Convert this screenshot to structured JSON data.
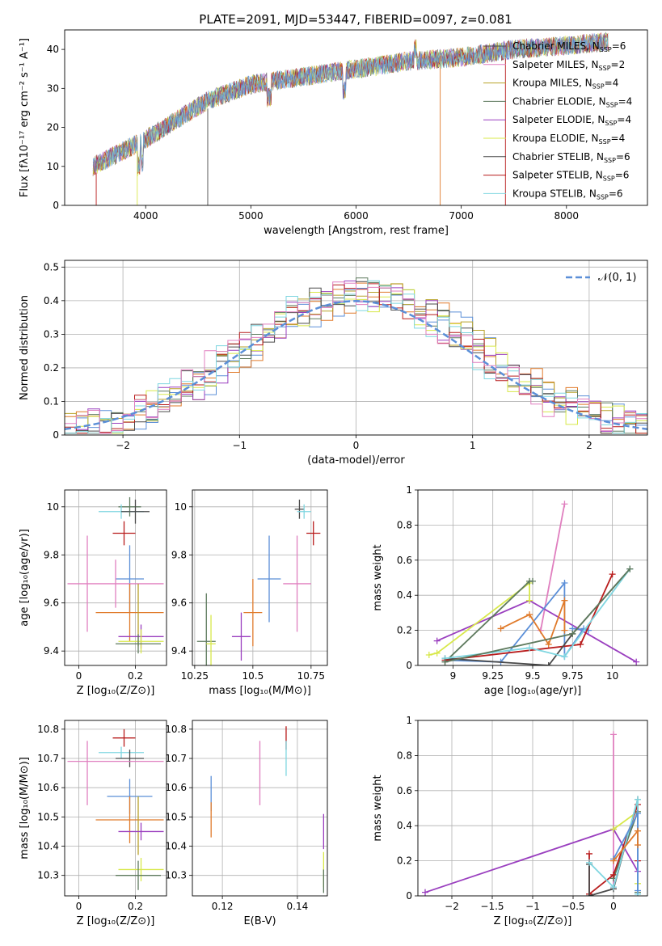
{
  "figure": {
    "title": "PLATE=2091, MJD=53447, FIBERID=0097, z=0.081"
  },
  "colors": {
    "chabrier_miles": "#5b8fd8",
    "salpeter_miles": "#e07a2a",
    "kroupa_miles": "#b8a22a",
    "chabrier_elodie": "#5e7a5e",
    "salpeter_elodie": "#9a3fbf",
    "kroupa_elodie": "#d8e84a",
    "chabrier_stelib": "#4a4a4a",
    "salpeter_stelib": "#b81c1c",
    "kroupa_stelib": "#7fd6e0",
    "pink": "#e07fbf",
    "ncurve": "#5b8fd8"
  },
  "chart_data": [
    {
      "id": "spectrum",
      "type": "line",
      "xlabel": "wavelength [Angstrom, rest frame]",
      "ylabel": "Flux [fλ10⁻¹⁷ erg cm⁻² s⁻¹ A⁻¹]",
      "xlim": [
        3230,
        8770
      ],
      "ylim": [
        0,
        45
      ],
      "xticks": [
        4000,
        5000,
        6000,
        7000,
        8000
      ],
      "yticks": [
        0,
        10,
        20,
        30,
        40
      ],
      "legend_position": "top-right",
      "legend": [
        {
          "label": "Chabrier MILES, N",
          "sub": "SSP",
          "tail": "=6",
          "color_key": "chabrier_stelib"
        },
        {
          "label": "Salpeter MILES, N",
          "sub": "SSP",
          "tail": "=2",
          "color_key": "pink"
        },
        {
          "label": "Kroupa MILES, N",
          "sub": "SSP",
          "tail": "=4",
          "color_key": "kroupa_miles"
        },
        {
          "label": "Chabrier ELODIE, N",
          "sub": "SSP",
          "tail": "=4",
          "color_key": "chabrier_elodie"
        },
        {
          "label": "Salpeter ELODIE, N",
          "sub": "SSP",
          "tail": "=4",
          "color_key": "salpeter_elodie"
        },
        {
          "label": "Kroupa ELODIE, N",
          "sub": "SSP",
          "tail": "=4",
          "color_key": "kroupa_elodie"
        },
        {
          "label": "Chabrier STELIB, N",
          "sub": "SSP",
          "tail": "=6",
          "color_key": "chabrier_stelib"
        },
        {
          "label": "Salpeter STELIB, N",
          "sub": "SSP",
          "tail": "=6",
          "color_key": "salpeter_stelib"
        },
        {
          "label": "Kroupa STELIB, N",
          "sub": "SSP",
          "tail": "=6",
          "color_key": "kroupa_stelib"
        }
      ],
      "x_range": [
        3500,
        8400
      ],
      "y_approx": [
        [
          3500,
          10
        ],
        [
          4000,
          17
        ],
        [
          4300,
          22
        ],
        [
          4600,
          27
        ],
        [
          5000,
          31
        ],
        [
          5500,
          33
        ],
        [
          6000,
          35
        ],
        [
          6500,
          37
        ],
        [
          7000,
          38
        ],
        [
          7500,
          40
        ],
        [
          8000,
          41
        ],
        [
          8400,
          42
        ]
      ]
    },
    {
      "id": "residuals",
      "type": "line",
      "xlabel": "(data-model)/error",
      "ylabel": "Normed distribution",
      "xlim": [
        -2.5,
        2.5
      ],
      "ylim": [
        0,
        0.52
      ],
      "xticks": [
        -2,
        -1,
        0,
        1,
        2
      ],
      "yticks": [
        0.0,
        0.1,
        0.2,
        0.3,
        0.4,
        0.5
      ],
      "grid": true,
      "legend_position": "top-right",
      "legend_label": "𝒩(0, 1)",
      "series": [
        {
          "name": "𝒩(0, 1)",
          "style": "dashed",
          "gaussian": {
            "mu": 0,
            "sigma": 1
          }
        }
      ],
      "bin_width": 0.1,
      "histogram_envelope_range": [
        -2.5,
        2.5
      ]
    },
    {
      "id": "age_vs_Z",
      "type": "scatter",
      "xlabel": "Z [log₁₀(Z/Z⊙)]",
      "ylabel": "age  [log₁₀(age/yr)]",
      "xlim": [
        -0.05,
        0.31
      ],
      "ylim": [
        9.34,
        10.07
      ],
      "xticks": [
        0.0,
        0.2
      ],
      "yticks": [
        9.4,
        9.6,
        9.8,
        10.0
      ],
      "grid": true,
      "points": [
        {
          "x": 0.18,
          "y": 10.0,
          "xerr": 0.04,
          "yerr": 0.04,
          "color_key": "chabrier_elodie"
        },
        {
          "x": 0.15,
          "y": 9.98,
          "xerr": 0.08,
          "yerr": 0.03,
          "color_key": "kroupa_stelib"
        },
        {
          "x": 0.2,
          "y": 9.98,
          "xerr": 0.05,
          "yerr": 0.05,
          "color_key": "chabrier_stelib"
        },
        {
          "x": 0.16,
          "y": 9.89,
          "xerr": 0.04,
          "yerr": 0.05,
          "color_key": "salpeter_stelib"
        },
        {
          "x": 0.18,
          "y": 9.7,
          "xerr": 0.05,
          "yerr": 0.14,
          "color_key": "chabrier_miles"
        },
        {
          "x": 0.13,
          "y": 9.68,
          "xerr": 0.17,
          "yerr": 0.1,
          "color_key": "pink"
        },
        {
          "x": 0.03,
          "y": 9.68,
          "xerr": 0.0,
          "yerr": 0.2,
          "color_key": "pink"
        },
        {
          "x": 0.18,
          "y": 9.56,
          "xerr": 0.12,
          "yerr": 0.12,
          "color_key": "salpeter_miles"
        },
        {
          "x": 0.21,
          "y": 9.55,
          "xerr": 0.0,
          "yerr": 0.13,
          "color_key": "kroupa_miles"
        },
        {
          "x": 0.22,
          "y": 9.46,
          "xerr": 0.08,
          "yerr": 0.05,
          "color_key": "salpeter_elodie"
        },
        {
          "x": 0.22,
          "y": 9.44,
          "xerr": 0.08,
          "yerr": 0.05,
          "color_key": "kroupa_elodie"
        },
        {
          "x": 0.21,
          "y": 9.43,
          "xerr": 0.08,
          "yerr": 0.04,
          "color_key": "chabrier_elodie"
        }
      ]
    },
    {
      "id": "age_vs_mass",
      "type": "scatter",
      "xlabel": "mass [log₁₀(M/M⊙)]",
      "xlim": [
        10.24,
        10.82
      ],
      "ylim": [
        9.34,
        10.07
      ],
      "xticks": [
        10.25,
        10.5,
        10.75
      ],
      "yticks": [
        9.4,
        9.6,
        9.8,
        10.0
      ],
      "grid": true,
      "points": [
        {
          "x": 10.7,
          "y": 9.99,
          "xerr": 0.02,
          "yerr": 0.04,
          "color_key": "chabrier_stelib"
        },
        {
          "x": 10.72,
          "y": 9.98,
          "xerr": 0.03,
          "yerr": 0.03,
          "color_key": "kroupa_stelib"
        },
        {
          "x": 10.76,
          "y": 9.89,
          "xerr": 0.03,
          "yerr": 0.05,
          "color_key": "salpeter_stelib"
        },
        {
          "x": 10.57,
          "y": 9.7,
          "xerr": 0.05,
          "yerr": 0.18,
          "color_key": "chabrier_miles"
        },
        {
          "x": 10.69,
          "y": 9.68,
          "xerr": 0.06,
          "yerr": 0.2,
          "color_key": "pink"
        },
        {
          "x": 10.5,
          "y": 9.56,
          "xerr": 0.04,
          "yerr": 0.14,
          "color_key": "salpeter_miles"
        },
        {
          "x": 10.45,
          "y": 9.46,
          "xerr": 0.04,
          "yerr": 0.1,
          "color_key": "salpeter_elodie"
        },
        {
          "x": 10.3,
          "y": 9.44,
          "xerr": 0.04,
          "yerr": 0.2,
          "color_key": "chabrier_elodie"
        },
        {
          "x": 10.32,
          "y": 9.43,
          "xerr": 0.02,
          "yerr": 0.12,
          "color_key": "kroupa_elodie"
        }
      ]
    },
    {
      "id": "mass_weight_vs_age",
      "type": "line",
      "xlabel": "age  [log₁₀(age/yr)]",
      "ylabel": "mass weight",
      "xlim": [
        8.78,
        10.22
      ],
      "ylim": [
        0.0,
        1.0
      ],
      "xticks": [
        9.0,
        9.25,
        9.5,
        9.75,
        10.0
      ],
      "yticks": [
        0.0,
        0.2,
        0.4,
        0.6,
        0.8,
        1.0
      ],
      "grid": true,
      "series": [
        {
          "color_key": "pink",
          "x": [
            9.55,
            9.7
          ],
          "y": [
            0.2,
            0.92
          ]
        },
        {
          "color_key": "salpeter_elodie",
          "x": [
            8.9,
            9.48,
            10.15
          ],
          "y": [
            0.14,
            0.37,
            0.02
          ]
        },
        {
          "color_key": "kroupa_elodie",
          "x": [
            8.85,
            8.9,
            9.48,
            9.48
          ],
          "y": [
            0.06,
            0.07,
            0.47,
            0.37
          ]
        },
        {
          "color_key": "chabrier_elodie",
          "x": [
            8.95,
            9.48,
            9.5
          ],
          "y": [
            0.02,
            0.48,
            0.48
          ]
        },
        {
          "color_key": "chabrier_miles",
          "x": [
            8.95,
            9.3,
            9.7,
            9.7,
            9.82,
            9.85,
            9.75
          ],
          "y": [
            0.03,
            0.02,
            0.47,
            0.05,
            0.21,
            0.2,
            0.21
          ]
        },
        {
          "color_key": "salpeter_miles",
          "x": [
            9.3,
            9.48,
            9.6,
            9.7,
            9.7
          ],
          "y": [
            0.21,
            0.29,
            0.12,
            0.37,
            0.2
          ]
        },
        {
          "color_key": "salpeter_stelib",
          "x": [
            8.95,
            9.8,
            10.0
          ],
          "y": [
            0.03,
            0.12,
            0.52
          ]
        },
        {
          "color_key": "chabrier_stelib",
          "x": [
            8.95,
            9.6,
            9.75,
            10.11
          ],
          "y": [
            0.04,
            0.0,
            0.18,
            0.55
          ]
        },
        {
          "color_key": "kroupa_stelib",
          "x": [
            8.95,
            9.48,
            9.7,
            10.11
          ],
          "y": [
            0.04,
            0.1,
            0.05,
            0.55
          ]
        },
        {
          "color_key": "chabrier_elodie",
          "x": [
            8.95,
            9.75,
            10.11
          ],
          "y": [
            0.02,
            0.18,
            0.55
          ]
        }
      ]
    },
    {
      "id": "mass_vs_Z",
      "type": "scatter",
      "xlabel": "Z [log₁₀(Z/Z⊙)]",
      "ylabel": "mass [log₁₀(M/M⊙)]",
      "xlim": [
        -0.05,
        0.31
      ],
      "ylim": [
        10.23,
        10.83
      ],
      "xticks": [
        0.0,
        0.2
      ],
      "yticks": [
        10.3,
        10.4,
        10.5,
        10.6,
        10.7,
        10.8
      ],
      "grid": true,
      "points": [
        {
          "x": 0.16,
          "y": 10.77,
          "xerr": 0.04,
          "yerr": 0.03,
          "color_key": "salpeter_stelib"
        },
        {
          "x": 0.15,
          "y": 10.72,
          "xerr": 0.08,
          "yerr": 0.02,
          "color_key": "kroupa_stelib"
        },
        {
          "x": 0.18,
          "y": 10.7,
          "xerr": 0.05,
          "yerr": 0.03,
          "color_key": "chabrier_stelib"
        },
        {
          "x": 0.13,
          "y": 10.69,
          "xerr": 0.17,
          "yerr": 0.0,
          "color_key": "pink"
        },
        {
          "x": 0.03,
          "y": 10.65,
          "xerr": 0.0,
          "yerr": 0.11,
          "color_key": "pink"
        },
        {
          "x": 0.18,
          "y": 10.57,
          "xerr": 0.08,
          "yerr": 0.06,
          "color_key": "chabrier_miles"
        },
        {
          "x": 0.18,
          "y": 10.49,
          "xerr": 0.12,
          "yerr": 0.08,
          "color_key": "salpeter_miles"
        },
        {
          "x": 0.21,
          "y": 10.47,
          "xerr": 0.0,
          "yerr": 0.1,
          "color_key": "kroupa_miles"
        },
        {
          "x": 0.22,
          "y": 10.45,
          "xerr": 0.08,
          "yerr": 0.03,
          "color_key": "salpeter_elodie"
        },
        {
          "x": 0.22,
          "y": 10.32,
          "xerr": 0.08,
          "yerr": 0.04,
          "color_key": "kroupa_elodie"
        },
        {
          "x": 0.21,
          "y": 10.3,
          "xerr": 0.08,
          "yerr": 0.05,
          "color_key": "chabrier_elodie"
        }
      ]
    },
    {
      "id": "mass_vs_ebv",
      "type": "scatter",
      "xlabel": "E(B-V)",
      "xlim": [
        0.112,
        0.148
      ],
      "ylim": [
        10.23,
        10.83
      ],
      "xticks": [
        0.12,
        0.14
      ],
      "yticks": [
        10.3,
        10.4,
        10.5,
        10.6,
        10.7,
        10.8
      ],
      "grid": true,
      "points": [
        {
          "x": 0.137,
          "y": 10.77,
          "xerr": 0.0,
          "yerr": 0.04,
          "color_key": "salpeter_stelib"
        },
        {
          "x": 0.137,
          "y": 10.7,
          "xerr": 0.0,
          "yerr": 0.06,
          "color_key": "kroupa_stelib"
        },
        {
          "x": 0.13,
          "y": 10.65,
          "xerr": 0.0,
          "yerr": 0.11,
          "color_key": "pink"
        },
        {
          "x": 0.117,
          "y": 10.58,
          "xerr": 0.0,
          "yerr": 0.06,
          "color_key": "chabrier_miles"
        },
        {
          "x": 0.117,
          "y": 10.49,
          "xerr": 0.0,
          "yerr": 0.06,
          "color_key": "salpeter_miles"
        },
        {
          "x": 0.147,
          "y": 10.45,
          "xerr": 0.0,
          "yerr": 0.06,
          "color_key": "salpeter_elodie"
        },
        {
          "x": 0.147,
          "y": 10.32,
          "xerr": 0.0,
          "yerr": 0.06,
          "color_key": "kroupa_elodie"
        },
        {
          "x": 0.147,
          "y": 10.28,
          "xerr": 0.0,
          "yerr": 0.04,
          "color_key": "chabrier_elodie"
        }
      ]
    },
    {
      "id": "mass_weight_vs_Z",
      "type": "line",
      "xlabel": "Z [log₁₀(Z/Z⊙)]",
      "ylabel": "mass weight",
      "xlim": [
        -2.42,
        0.42
      ],
      "ylim": [
        0.0,
        1.0
      ],
      "xticks": [
        -2.0,
        -1.5,
        -1.0,
        -0.5,
        0.0
      ],
      "yticks": [
        0.0,
        0.2,
        0.4,
        0.6,
        0.8,
        1.0
      ],
      "grid": true,
      "series": [
        {
          "color_key": "pink",
          "x": [
            0.0,
            0.0
          ],
          "y": [
            0.92,
            0.05
          ]
        },
        {
          "color_key": "salpeter_elodie",
          "x": [
            -2.33,
            0.0,
            0.3
          ],
          "y": [
            0.02,
            0.38,
            0.14
          ]
        },
        {
          "color_key": "kroupa_elodie",
          "x": [
            0.0,
            0.3,
            0.3
          ],
          "y": [
            0.38,
            0.48,
            0.07
          ]
        },
        {
          "color_key": "chabrier_elodie",
          "x": [
            0.0,
            0.3,
            0.3
          ],
          "y": [
            0.1,
            0.48,
            0.02
          ]
        },
        {
          "color_key": "salpeter_stelib",
          "x": [
            -0.3,
            -0.3,
            0.0,
            0.3,
            0.3
          ],
          "y": [
            0.24,
            0.01,
            0.12,
            0.52,
            0.2
          ]
        },
        {
          "color_key": "chabrier_stelib",
          "x": [
            -0.3,
            -0.3,
            0.0,
            0.3
          ],
          "y": [
            0.18,
            0.0,
            0.04,
            0.55
          ]
        },
        {
          "color_key": "kroupa_stelib",
          "x": [
            -0.3,
            0.0,
            0.3,
            0.3
          ],
          "y": [
            0.19,
            0.05,
            0.55,
            0.01
          ]
        },
        {
          "color_key": "chabrier_miles",
          "x": [
            0.0,
            0.3,
            0.3
          ],
          "y": [
            0.21,
            0.47,
            0.03
          ]
        },
        {
          "color_key": "salpeter_miles",
          "x": [
            0.0,
            0.3,
            0.3
          ],
          "y": [
            0.2,
            0.37,
            0.29
          ]
        }
      ]
    }
  ]
}
